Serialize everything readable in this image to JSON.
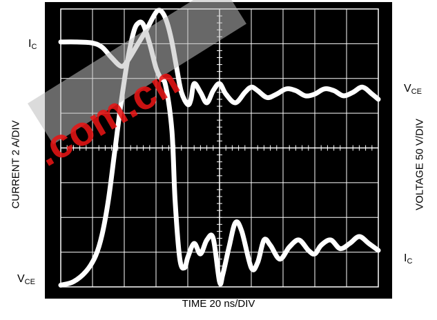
{
  "chart_data": {
    "type": "line",
    "title": "",
    "xlabel": "TIME 20 ns/DIV",
    "ylabel_left": "CURRENT 2 A/DIV",
    "ylabel_right": "VOLTAGE 50 V/DIV",
    "grid": true,
    "background": "#000000",
    "trace_color": "#ffffff",
    "x_divisions": 10,
    "y_divisions": 8,
    "x_units": "div",
    "y_units": "div",
    "trace_labels": {
      "ic_left": {
        "main": "I",
        "sub": "C"
      },
      "vce_left": {
        "main": "V",
        "sub": "CE"
      },
      "vce_right": {
        "main": "V",
        "sub": "CE"
      },
      "ic_right": {
        "main": "I",
        "sub": "C"
      }
    },
    "series": [
      {
        "name": "I_C",
        "x": [
          0,
          0.5,
          1.0,
          1.3,
          1.6,
          1.9,
          2.1,
          2.4,
          2.7,
          2.9,
          3.05,
          3.2,
          3.35,
          3.5,
          3.65,
          3.8,
          4.0,
          4.1,
          4.2,
          4.4,
          4.6,
          4.8,
          5.0,
          5.2,
          5.5,
          5.8,
          6.0,
          6.2,
          6.5,
          6.8,
          7.1,
          7.4,
          7.7,
          8.0,
          8.3,
          8.6,
          8.9,
          9.2,
          9.5,
          9.8,
          10.0
        ],
        "y": [
          7.05,
          7.05,
          7.02,
          6.9,
          6.6,
          6.35,
          6.5,
          6.95,
          7.4,
          7.75,
          7.95,
          7.9,
          7.6,
          7.05,
          6.3,
          5.6,
          5.25,
          5.4,
          5.85,
          5.6,
          5.3,
          5.65,
          5.85,
          5.55,
          5.3,
          5.6,
          5.75,
          5.65,
          5.45,
          5.55,
          5.7,
          5.65,
          5.5,
          5.55,
          5.7,
          5.65,
          5.5,
          5.6,
          5.75,
          5.55,
          5.4
        ]
      },
      {
        "name": "V_CE",
        "x": [
          0,
          0.4,
          0.8,
          1.1,
          1.3,
          1.5,
          1.7,
          1.9,
          2.1,
          2.3,
          2.45,
          2.6,
          2.8,
          3.0,
          3.15,
          3.3,
          3.5,
          3.6,
          3.75,
          3.9,
          4.0,
          4.2,
          4.4,
          4.6,
          4.8,
          5.0,
          5.1,
          5.3,
          5.5,
          5.7,
          6.0,
          6.2,
          6.4,
          6.6,
          6.9,
          7.2,
          7.5,
          7.8,
          8.0,
          8.2,
          8.5,
          8.8,
          9.1,
          9.4,
          9.7,
          10.0
        ],
        "y": [
          0.05,
          0.15,
          0.45,
          0.9,
          1.5,
          2.5,
          3.9,
          5.3,
          6.5,
          7.35,
          7.6,
          7.55,
          7.0,
          6.3,
          6.0,
          5.8,
          4.5,
          2.5,
          0.8,
          0.55,
          0.85,
          1.25,
          0.95,
          1.35,
          1.4,
          0.15,
          0.35,
          1.15,
          1.85,
          1.6,
          0.55,
          0.7,
          1.35,
          1.2,
          0.8,
          1.15,
          1.35,
          1.05,
          0.95,
          1.2,
          1.35,
          1.1,
          1.25,
          1.45,
          1.25,
          1.05
        ]
      }
    ]
  }
}
